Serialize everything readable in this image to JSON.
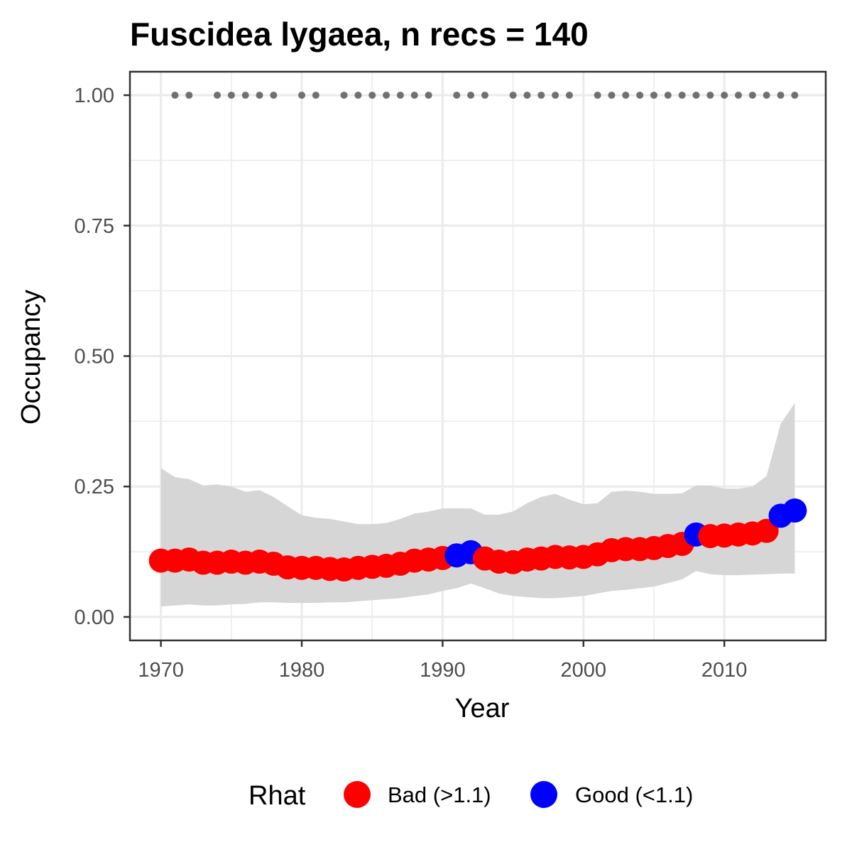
{
  "chart_data": {
    "type": "line",
    "title": "Fuscidea lygaea, n recs = 140",
    "xlabel": "Year",
    "ylabel": "Occupancy",
    "xlim": [
      1967.8,
      2017.2
    ],
    "ylim": [
      -0.045,
      1.045
    ],
    "x_ticks": [
      1970,
      1980,
      1990,
      2000,
      2010
    ],
    "y_ticks": [
      0.0,
      0.25,
      0.5,
      0.75,
      1.0
    ],
    "y_tick_labels": [
      "0.00",
      "0.25",
      "0.50",
      "0.75",
      "1.00"
    ],
    "grid": true,
    "colors": {
      "bad": "#ff0000",
      "good": "#0000ff",
      "ribbon": "#d6d6d6",
      "records": "#707070",
      "grid": "#ebebeb",
      "panel_border": "#333333"
    },
    "series": [
      {
        "name": "occupancy",
        "years": [
          1970,
          1971,
          1972,
          1973,
          1974,
          1975,
          1976,
          1977,
          1978,
          1979,
          1980,
          1981,
          1982,
          1983,
          1984,
          1985,
          1986,
          1987,
          1988,
          1989,
          1990,
          1991,
          1992,
          1993,
          1994,
          1995,
          1996,
          1997,
          1998,
          1999,
          2000,
          2001,
          2002,
          2003,
          2004,
          2005,
          2006,
          2007,
          2008,
          2009,
          2010,
          2011,
          2012,
          2013,
          2014,
          2015
        ],
        "values": [
          0.108,
          0.108,
          0.11,
          0.104,
          0.104,
          0.106,
          0.104,
          0.106,
          0.102,
          0.095,
          0.094,
          0.094,
          0.092,
          0.091,
          0.094,
          0.096,
          0.098,
          0.102,
          0.108,
          0.11,
          0.113,
          0.118,
          0.124,
          0.112,
          0.106,
          0.105,
          0.11,
          0.112,
          0.115,
          0.114,
          0.115,
          0.12,
          0.128,
          0.13,
          0.13,
          0.132,
          0.136,
          0.14,
          0.158,
          0.155,
          0.156,
          0.158,
          0.16,
          0.165,
          0.194,
          0.204
        ],
        "rhat": [
          "Bad",
          "Bad",
          "Bad",
          "Bad",
          "Bad",
          "Bad",
          "Bad",
          "Bad",
          "Bad",
          "Bad",
          "Bad",
          "Bad",
          "Bad",
          "Bad",
          "Bad",
          "Bad",
          "Bad",
          "Bad",
          "Bad",
          "Bad",
          "Bad",
          "Good",
          "Good",
          "Bad",
          "Bad",
          "Bad",
          "Bad",
          "Bad",
          "Bad",
          "Bad",
          "Bad",
          "Bad",
          "Bad",
          "Bad",
          "Bad",
          "Bad",
          "Bad",
          "Bad",
          "Good",
          "Bad",
          "Bad",
          "Bad",
          "Bad",
          "Bad",
          "Good",
          "Good"
        ],
        "lower": [
          0.02,
          0.022,
          0.024,
          0.022,
          0.022,
          0.024,
          0.025,
          0.028,
          0.028,
          0.027,
          0.027,
          0.027,
          0.028,
          0.028,
          0.03,
          0.032,
          0.034,
          0.036,
          0.04,
          0.043,
          0.05,
          0.055,
          0.064,
          0.055,
          0.045,
          0.04,
          0.038,
          0.036,
          0.036,
          0.038,
          0.04,
          0.045,
          0.05,
          0.052,
          0.055,
          0.058,
          0.065,
          0.072,
          0.088,
          0.082,
          0.08,
          0.08,
          0.081,
          0.082,
          0.083,
          0.083
        ],
        "upper": [
          0.285,
          0.268,
          0.264,
          0.252,
          0.254,
          0.25,
          0.24,
          0.243,
          0.23,
          0.212,
          0.195,
          0.19,
          0.188,
          0.183,
          0.178,
          0.178,
          0.18,
          0.188,
          0.198,
          0.202,
          0.208,
          0.208,
          0.208,
          0.196,
          0.196,
          0.202,
          0.218,
          0.23,
          0.236,
          0.225,
          0.216,
          0.218,
          0.24,
          0.242,
          0.24,
          0.236,
          0.236,
          0.237,
          0.252,
          0.252,
          0.246,
          0.246,
          0.25,
          0.27,
          0.37,
          0.41
        ]
      }
    ],
    "records": {
      "y": 1.0,
      "years": [
        1971,
        1972,
        1974,
        1975,
        1976,
        1977,
        1978,
        1980,
        1981,
        1983,
        1984,
        1985,
        1986,
        1987,
        1988,
        1989,
        1991,
        1992,
        1993,
        1995,
        1996,
        1997,
        1998,
        1999,
        2001,
        2002,
        2003,
        2004,
        2005,
        2006,
        2007,
        2008,
        2009,
        2010,
        2011,
        2012,
        2013,
        2014,
        2015
      ]
    },
    "legend": {
      "title": "Rhat",
      "position": "bottom",
      "items": [
        {
          "key": "Bad",
          "label": "Bad (>1.1)"
        },
        {
          "key": "Good",
          "label": "Good (<1.1)"
        }
      ]
    }
  }
}
